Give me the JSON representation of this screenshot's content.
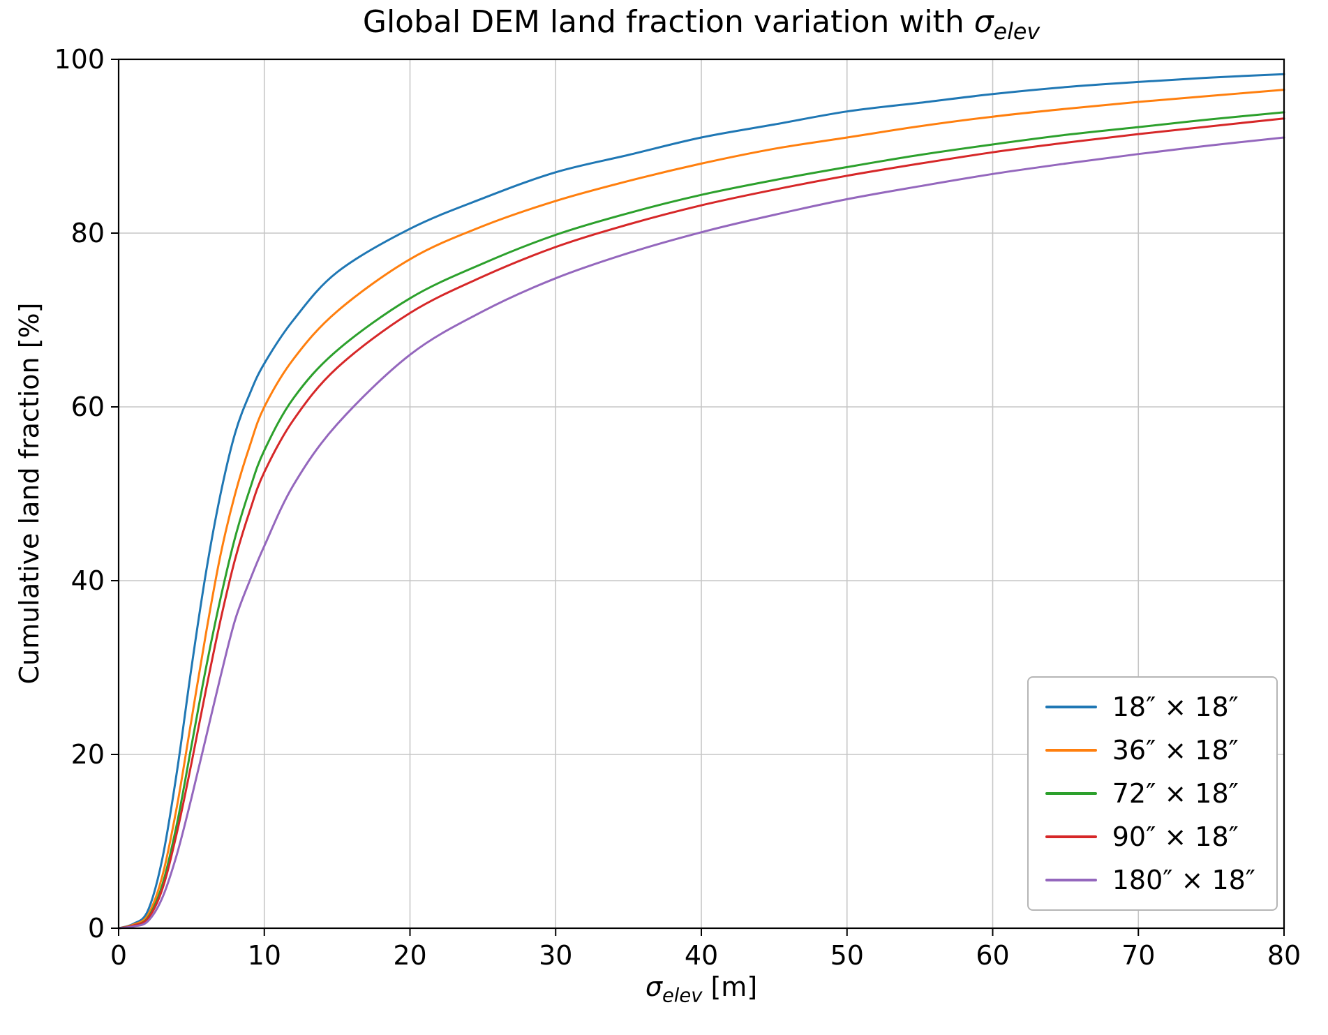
{
  "chart_data": {
    "type": "line",
    "title_prefix": "Global DEM land fraction variation with ",
    "title_sigma": "σ",
    "title_sub": "elev",
    "xlabel_sigma": "σ",
    "xlabel_sub": "elev",
    "xlabel_unit": " [m]",
    "ylabel": "Cumulative land fraction [%]",
    "xlim": [
      0,
      80
    ],
    "ylim": [
      0,
      100
    ],
    "xticks": [
      0,
      10,
      20,
      30,
      40,
      50,
      60,
      70,
      80
    ],
    "yticks": [
      0,
      20,
      40,
      60,
      80,
      100
    ],
    "grid": true,
    "legend_position": "lower right",
    "x": [
      0,
      1,
      2,
      3,
      4,
      5,
      6,
      7,
      8,
      9,
      10,
      12,
      15,
      20,
      25,
      30,
      35,
      40,
      45,
      50,
      55,
      60,
      65,
      70,
      75,
      80
    ],
    "series": [
      {
        "name": "18″ × 18″",
        "color": "#1f77b4",
        "values": [
          0,
          0.5,
          2,
          8,
          18,
          30,
          41,
          50,
          57,
          61.5,
          65,
          70,
          75.5,
          80.5,
          84,
          87,
          89,
          91,
          92.5,
          94,
          95,
          96,
          96.8,
          97.4,
          97.9,
          98.3
        ]
      },
      {
        "name": "36″ × 18″",
        "color": "#ff7f0e",
        "values": [
          0,
          0.4,
          1.5,
          6,
          14,
          24,
          34,
          43,
          50,
          55.5,
          60,
          65.5,
          71,
          77,
          80.8,
          83.7,
          86,
          88,
          89.7,
          91,
          92.3,
          93.4,
          94.3,
          95.1,
          95.8,
          96.5
        ]
      },
      {
        "name": "72″ × 18″",
        "color": "#2ca02c",
        "values": [
          0,
          0.3,
          1.2,
          5,
          12,
          21,
          30,
          38,
          45,
          50.5,
          55,
          61,
          66.5,
          72.5,
          76.5,
          79.8,
          82.3,
          84.4,
          86.1,
          87.6,
          89,
          90.2,
          91.3,
          92.2,
          93.1,
          93.9
        ]
      },
      {
        "name": "90″ × 18″",
        "color": "#d62728",
        "values": [
          0,
          0.3,
          1.1,
          4.5,
          11,
          19,
          27.5,
          35.5,
          42.5,
          48,
          52.5,
          58.5,
          64.5,
          70.8,
          75,
          78.4,
          81,
          83.2,
          85,
          86.6,
          88,
          89.3,
          90.4,
          91.4,
          92.3,
          93.2
        ]
      },
      {
        "name": "180″ × 18″",
        "color": "#9467bd",
        "values": [
          0,
          0.2,
          0.8,
          3.5,
          8.5,
          15,
          22,
          29,
          35.5,
          40,
          44,
          51,
          58,
          66,
          71,
          74.8,
          77.7,
          80.1,
          82.1,
          83.9,
          85.4,
          86.8,
          88,
          89.1,
          90.1,
          91
        ]
      }
    ],
    "style": {
      "grid_color": "#c6c6c6",
      "spine_color": "#000000",
      "tick_label_color": "#000000",
      "line_width": 3
    }
  }
}
